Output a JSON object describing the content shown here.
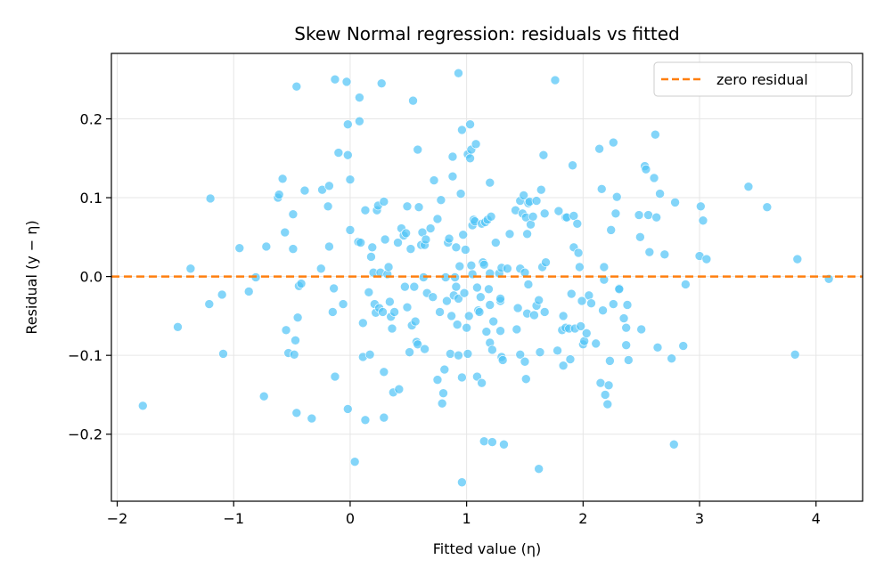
{
  "chart_data": {
    "type": "scatter",
    "title": "Skew Normal regression: residuals vs fitted",
    "xlabel": "Fitted value (η)",
    "ylabel": "Residual (y − η)",
    "xlim": [
      -2.05,
      4.4
    ],
    "ylim": [
      -0.285,
      0.283
    ],
    "xticks": [
      -2,
      -1,
      0,
      1,
      2,
      3,
      4
    ],
    "xtick_labels": [
      "−2",
      "−1",
      "0",
      "1",
      "2",
      "3",
      "4"
    ],
    "yticks": [
      -0.2,
      -0.1,
      0.0,
      0.1,
      0.2
    ],
    "ytick_labels": [
      "−0.2",
      "−0.1",
      "0.0",
      "0.1",
      "0.2"
    ],
    "grid": true,
    "legend_position": "top-right",
    "point_color": "#4fc3f7",
    "reference_line": {
      "y": 0,
      "color": "#ff7f0e",
      "style": "dashed",
      "label": "zero residual"
    },
    "points": [
      [
        -1.78,
        -0.164
      ],
      [
        -1.48,
        -0.064
      ],
      [
        -1.37,
        0.01
      ],
      [
        -1.21,
        -0.035
      ],
      [
        -1.2,
        0.099
      ],
      [
        -1.1,
        -0.023
      ],
      [
        -1.09,
        -0.098
      ],
      [
        -0.95,
        0.036
      ],
      [
        -0.87,
        -0.019
      ],
      [
        -0.81,
        -0.001
      ],
      [
        -0.74,
        -0.152
      ],
      [
        -0.72,
        0.038
      ],
      [
        -0.62,
        0.1
      ],
      [
        -0.61,
        0.104
      ],
      [
        -0.58,
        0.124
      ],
      [
        -0.56,
        0.056
      ],
      [
        -0.55,
        -0.068
      ],
      [
        -0.53,
        -0.097
      ],
      [
        -0.49,
        0.079
      ],
      [
        -0.49,
        0.035
      ],
      [
        -0.48,
        -0.099
      ],
      [
        -0.47,
        -0.081
      ],
      [
        -0.46,
        0.241
      ],
      [
        -0.46,
        -0.173
      ],
      [
        -0.45,
        -0.052
      ],
      [
        -0.44,
        -0.012
      ],
      [
        -0.42,
        -0.009
      ],
      [
        -0.39,
        0.109
      ],
      [
        -0.33,
        -0.18
      ],
      [
        -0.25,
        0.01
      ],
      [
        -0.24,
        0.11
      ],
      [
        -0.18,
        0.115
      ],
      [
        -0.19,
        0.089
      ],
      [
        -0.18,
        0.038
      ],
      [
        -0.15,
        -0.045
      ],
      [
        -0.14,
        -0.015
      ],
      [
        -0.13,
        -0.127
      ],
      [
        -0.13,
        0.25
      ],
      [
        -0.1,
        0.157
      ],
      [
        -0.06,
        -0.035
      ],
      [
        -0.03,
        0.247
      ],
      [
        -0.02,
        0.193
      ],
      [
        -0.02,
        -0.168
      ],
      [
        -0.02,
        0.154
      ],
      [
        0.0,
        0.123
      ],
      [
        0.0,
        0.059
      ],
      [
        0.04,
        -0.235
      ],
      [
        0.07,
        0.044
      ],
      [
        0.08,
        0.227
      ],
      [
        0.08,
        0.197
      ],
      [
        0.09,
        0.043
      ],
      [
        0.11,
        -0.059
      ],
      [
        0.11,
        -0.102
      ],
      [
        0.13,
        0.084
      ],
      [
        0.13,
        -0.182
      ],
      [
        0.16,
        -0.02
      ],
      [
        0.17,
        -0.099
      ],
      [
        0.18,
        0.025
      ],
      [
        0.19,
        0.037
      ],
      [
        0.2,
        0.005
      ],
      [
        0.21,
        -0.035
      ],
      [
        0.22,
        -0.046
      ],
      [
        0.23,
        0.084
      ],
      [
        0.24,
        0.09
      ],
      [
        0.25,
        -0.04
      ],
      [
        0.26,
        0.005
      ],
      [
        0.27,
        0.245
      ],
      [
        0.28,
        -0.045
      ],
      [
        0.29,
        0.095
      ],
      [
        0.29,
        -0.179
      ],
      [
        0.29,
        -0.121
      ],
      [
        0.3,
        0.047
      ],
      [
        0.32,
        0.003
      ],
      [
        0.33,
        0.012
      ],
      [
        0.34,
        -0.032
      ],
      [
        0.35,
        -0.051
      ],
      [
        0.36,
        -0.066
      ],
      [
        0.37,
        -0.147
      ],
      [
        0.38,
        -0.045
      ],
      [
        0.41,
        0.043
      ],
      [
        0.42,
        -0.143
      ],
      [
        0.44,
        0.061
      ],
      [
        0.46,
        0.052
      ],
      [
        0.47,
        -0.013
      ],
      [
        0.48,
        0.055
      ],
      [
        0.49,
        0.089
      ],
      [
        0.49,
        -0.039
      ],
      [
        0.51,
        -0.096
      ],
      [
        0.52,
        0.035
      ],
      [
        0.53,
        -0.062
      ],
      [
        0.54,
        0.223
      ],
      [
        0.55,
        -0.013
      ],
      [
        0.56,
        -0.057
      ],
      [
        0.57,
        -0.083
      ],
      [
        0.58,
        -0.086
      ],
      [
        0.58,
        0.161
      ],
      [
        0.59,
        0.088
      ],
      [
        0.61,
        0.04
      ],
      [
        0.62,
        0.056
      ],
      [
        0.63,
        -0.001
      ],
      [
        0.64,
        -0.092
      ],
      [
        0.64,
        0.04
      ],
      [
        0.65,
        0.047
      ],
      [
        0.66,
        -0.021
      ],
      [
        0.69,
        0.061
      ],
      [
        0.71,
        -0.026
      ],
      [
        0.72,
        0.122
      ],
      [
        0.75,
        0.073
      ],
      [
        0.75,
        -0.131
      ],
      [
        0.77,
        -0.045
      ],
      [
        0.78,
        0.097
      ],
      [
        0.79,
        -0.161
      ],
      [
        0.8,
        -0.148
      ],
      [
        0.81,
        -0.118
      ],
      [
        0.82,
        -0.001
      ],
      [
        0.83,
        -0.031
      ],
      [
        0.84,
        0.043
      ],
      [
        0.85,
        0.048
      ],
      [
        0.86,
        -0.098
      ],
      [
        0.87,
        -0.05
      ],
      [
        0.88,
        0.152
      ],
      [
        0.88,
        0.127
      ],
      [
        0.89,
        -0.024
      ],
      [
        0.9,
        -0.001
      ],
      [
        0.91,
        0.037
      ],
      [
        0.91,
        -0.013
      ],
      [
        0.92,
        -0.061
      ],
      [
        0.93,
        -0.028
      ],
      [
        0.94,
        0.013
      ],
      [
        0.93,
        -0.1
      ],
      [
        0.93,
        0.258
      ],
      [
        0.95,
        0.105
      ],
      [
        0.96,
        0.186
      ],
      [
        0.96,
        -0.261
      ],
      [
        0.96,
        -0.128
      ],
      [
        0.97,
        0.053
      ],
      [
        0.98,
        -0.021
      ],
      [
        0.99,
        0.034
      ],
      [
        1.0,
        -0.065
      ],
      [
        1.01,
        0.155
      ],
      [
        1.01,
        -0.098
      ],
      [
        1.02,
        -0.05
      ],
      [
        1.03,
        0.193
      ],
      [
        1.03,
        0.15
      ],
      [
        1.04,
        0.161
      ],
      [
        1.04,
        0.014
      ],
      [
        1.05,
        0.065
      ],
      [
        1.05,
        0.003
      ],
      [
        1.06,
        0.072
      ],
      [
        1.07,
        0.07
      ],
      [
        1.08,
        0.168
      ],
      [
        1.09,
        -0.014
      ],
      [
        1.09,
        -0.127
      ],
      [
        1.1,
        -0.043
      ],
      [
        1.11,
        -0.045
      ],
      [
        1.12,
        -0.026
      ],
      [
        1.13,
        -0.135
      ],
      [
        1.13,
        0.067
      ],
      [
        1.14,
        0.018
      ],
      [
        1.15,
        0.015
      ],
      [
        1.15,
        -0.209
      ],
      [
        1.16,
        0.069
      ],
      [
        1.17,
        -0.07
      ],
      [
        1.18,
        0.072
      ],
      [
        1.19,
        -0.016
      ],
      [
        1.2,
        0.119
      ],
      [
        1.2,
        0.004
      ],
      [
        1.2,
        -0.036
      ],
      [
        1.2,
        -0.084
      ],
      [
        1.21,
        0.076
      ],
      [
        1.22,
        -0.21
      ],
      [
        1.22,
        -0.093
      ],
      [
        1.23,
        -0.057
      ],
      [
        1.25,
        0.043
      ],
      [
        1.28,
        0.004
      ],
      [
        1.29,
        -0.031
      ],
      [
        1.29,
        -0.028
      ],
      [
        1.29,
        -0.069
      ],
      [
        1.3,
        0.011
      ],
      [
        1.3,
        -0.102
      ],
      [
        1.31,
        -0.106
      ],
      [
        1.32,
        -0.213
      ],
      [
        1.35,
        0.01
      ],
      [
        1.37,
        0.054
      ],
      [
        1.42,
        0.084
      ],
      [
        1.43,
        -0.067
      ],
      [
        1.44,
        -0.04
      ],
      [
        1.46,
        0.096
      ],
      [
        1.46,
        0.01
      ],
      [
        1.46,
        -0.099
      ],
      [
        1.48,
        0.08
      ],
      [
        1.49,
        0.103
      ],
      [
        1.5,
        -0.108
      ],
      [
        1.5,
        0.005
      ],
      [
        1.51,
        -0.13
      ],
      [
        1.51,
        0.075
      ],
      [
        1.52,
        0.054
      ],
      [
        1.52,
        -0.047
      ],
      [
        1.53,
        -0.01
      ],
      [
        1.53,
        0.093
      ],
      [
        1.54,
        0.095
      ],
      [
        1.55,
        0.066
      ],
      [
        1.57,
        0.076
      ],
      [
        1.58,
        -0.049
      ],
      [
        1.6,
        0.096
      ],
      [
        1.6,
        -0.037
      ],
      [
        1.62,
        -0.244
      ],
      [
        1.62,
        -0.03
      ],
      [
        1.63,
        -0.096
      ],
      [
        1.64,
        0.11
      ],
      [
        1.65,
        0.012
      ],
      [
        1.66,
        0.154
      ],
      [
        1.67,
        -0.045
      ],
      [
        1.67,
        0.08
      ],
      [
        1.68,
        0.018
      ],
      [
        1.76,
        0.249
      ],
      [
        1.78,
        -0.094
      ],
      [
        1.79,
        0.083
      ],
      [
        1.82,
        -0.068
      ],
      [
        1.83,
        -0.05
      ],
      [
        1.83,
        -0.113
      ],
      [
        1.85,
        0.075
      ],
      [
        1.85,
        -0.065
      ],
      [
        1.86,
        0.075
      ],
      [
        1.88,
        -0.066
      ],
      [
        1.89,
        -0.105
      ],
      [
        1.9,
        -0.022
      ],
      [
        1.91,
        0.141
      ],
      [
        1.92,
        0.037
      ],
      [
        1.92,
        0.077
      ],
      [
        1.93,
        -0.066
      ],
      [
        1.95,
        0.067
      ],
      [
        1.96,
        0.03
      ],
      [
        1.97,
        0.012
      ],
      [
        1.98,
        -0.063
      ],
      [
        1.99,
        -0.031
      ],
      [
        2.0,
        -0.086
      ],
      [
        2.01,
        -0.082
      ],
      [
        2.03,
        -0.072
      ],
      [
        2.05,
        -0.024
      ],
      [
        2.07,
        -0.034
      ],
      [
        2.11,
        -0.085
      ],
      [
        2.14,
        0.162
      ],
      [
        2.15,
        -0.135
      ],
      [
        2.16,
        0.111
      ],
      [
        2.17,
        -0.043
      ],
      [
        2.18,
        -0.004
      ],
      [
        2.18,
        0.012
      ],
      [
        2.19,
        -0.15
      ],
      [
        2.21,
        -0.162
      ],
      [
        2.22,
        -0.138
      ],
      [
        2.23,
        -0.107
      ],
      [
        2.24,
        0.059
      ],
      [
        2.26,
        0.17
      ],
      [
        2.26,
        -0.035
      ],
      [
        2.28,
        0.08
      ],
      [
        2.29,
        0.101
      ],
      [
        2.31,
        -0.015
      ],
      [
        2.31,
        -0.016
      ],
      [
        2.35,
        -0.053
      ],
      [
        2.37,
        -0.087
      ],
      [
        2.37,
        -0.065
      ],
      [
        2.38,
        -0.036
      ],
      [
        2.39,
        -0.106
      ],
      [
        2.48,
        0.078
      ],
      [
        2.49,
        0.05
      ],
      [
        2.5,
        -0.067
      ],
      [
        2.53,
        0.14
      ],
      [
        2.54,
        0.136
      ],
      [
        2.56,
        0.078
      ],
      [
        2.57,
        0.031
      ],
      [
        2.61,
        0.125
      ],
      [
        2.62,
        0.18
      ],
      [
        2.63,
        0.075
      ],
      [
        2.64,
        -0.09
      ],
      [
        2.66,
        0.105
      ],
      [
        2.7,
        0.028
      ],
      [
        2.76,
        -0.104
      ],
      [
        2.78,
        -0.213
      ],
      [
        2.79,
        0.094
      ],
      [
        2.86,
        -0.088
      ],
      [
        2.88,
        -0.01
      ],
      [
        3.0,
        0.026
      ],
      [
        3.01,
        0.089
      ],
      [
        3.03,
        0.071
      ],
      [
        3.06,
        0.022
      ],
      [
        3.42,
        0.114
      ],
      [
        3.58,
        0.088
      ],
      [
        3.82,
        -0.099
      ],
      [
        3.84,
        0.022
      ],
      [
        4.11,
        -0.003
      ]
    ]
  }
}
